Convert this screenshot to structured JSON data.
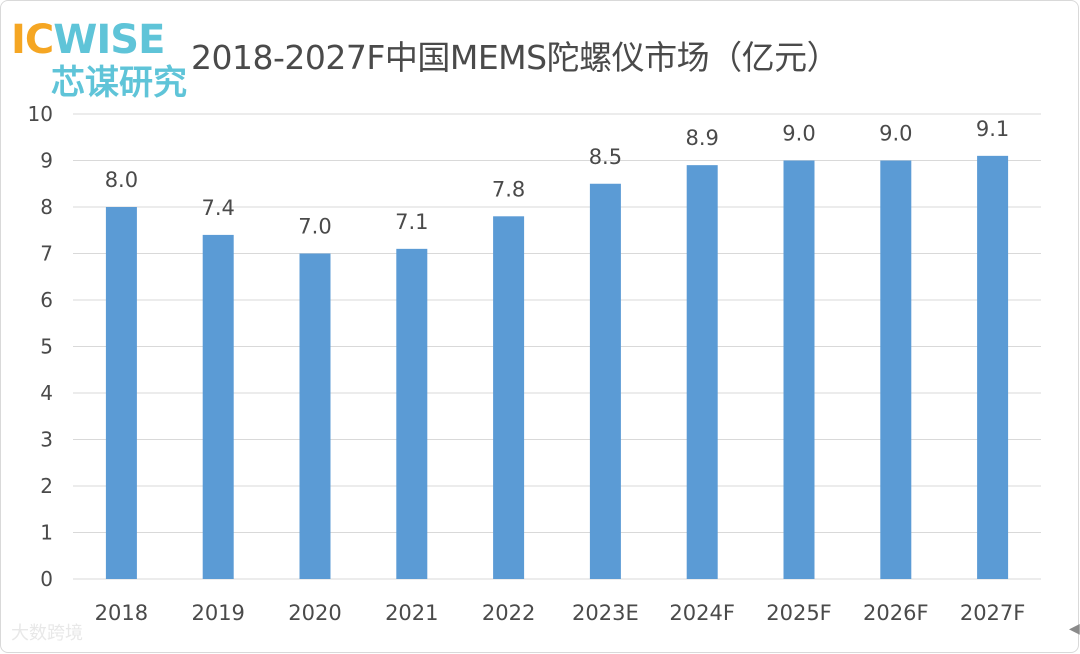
{
  "logo": {
    "prefix": "IC",
    "name": "WISE",
    "cn": "芯谋研究"
  },
  "watermark": "大数跨境",
  "colors": {
    "bar": "#5b9bd5",
    "grid": "#d9d9d9",
    "text": "#4a4a4a"
  },
  "chart_data": {
    "type": "bar",
    "title": "2018-2027F中国MEMS陀螺仪市场（亿元）",
    "categories": [
      "2018",
      "2019",
      "2020",
      "2021",
      "2022",
      "2023E",
      "2024F",
      "2025F",
      "2026F",
      "2027F"
    ],
    "values": [
      8.0,
      7.4,
      7.0,
      7.1,
      7.8,
      8.5,
      8.9,
      9.0,
      9.0,
      9.1
    ],
    "value_labels": [
      "8.0",
      "7.4",
      "7.0",
      "7.1",
      "7.8",
      "8.5",
      "8.9",
      "9.0",
      "9.0",
      "9.1"
    ],
    "ylim": [
      0,
      10
    ],
    "yticks": [
      "0",
      "1",
      "2",
      "3",
      "4",
      "5",
      "6",
      "7",
      "8",
      "9",
      "10"
    ],
    "xlabel": "",
    "ylabel": "",
    "grid": true,
    "legend": "none"
  }
}
